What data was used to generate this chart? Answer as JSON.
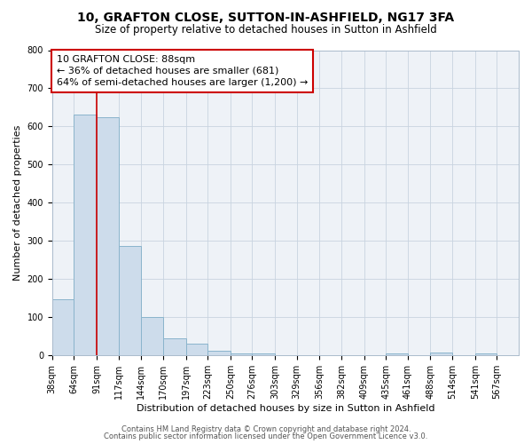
{
  "title": "10, GRAFTON CLOSE, SUTTON-IN-ASHFIELD, NG17 3FA",
  "subtitle": "Size of property relative to detached houses in Sutton in Ashfield",
  "xlabel": "Distribution of detached houses by size in Sutton in Ashfield",
  "ylabel": "Number of detached properties",
  "bar_values": [
    148,
    632,
    625,
    287,
    101,
    44,
    30,
    12,
    5,
    6,
    0,
    0,
    0,
    0,
    0,
    5,
    0,
    8,
    0,
    5
  ],
  "bin_labels": [
    "38sqm",
    "64sqm",
    "91sqm",
    "117sqm",
    "144sqm",
    "170sqm",
    "197sqm",
    "223sqm",
    "250sqm",
    "276sqm",
    "303sqm",
    "329sqm",
    "356sqm",
    "382sqm",
    "409sqm",
    "435sqm",
    "461sqm",
    "488sqm",
    "514sqm",
    "541sqm",
    "567sqm"
  ],
  "bin_edges": [
    38,
    64,
    91,
    117,
    144,
    170,
    197,
    223,
    250,
    276,
    303,
    329,
    356,
    382,
    409,
    435,
    461,
    488,
    514,
    541,
    567
  ],
  "bar_color": "#cddceb",
  "bar_edge_color": "#8ab4cc",
  "property_line_x": 91,
  "property_line_color": "#cc0000",
  "annotation_line1": "10 GRAFTON CLOSE: 88sqm",
  "annotation_line2": "← 36% of detached houses are smaller (681)",
  "annotation_line3": "64% of semi-detached houses are larger (1,200) →",
  "annotation_box_color": "#cc0000",
  "ylim": [
    0,
    800
  ],
  "yticks": [
    0,
    100,
    200,
    300,
    400,
    500,
    600,
    700,
    800
  ],
  "footer_line1": "Contains HM Land Registry data © Crown copyright and database right 2024.",
  "footer_line2": "Contains public sector information licensed under the Open Government Licence v3.0.",
  "bg_color": "#eef2f7",
  "grid_color": "#c8d4e0",
  "title_fontsize": 10,
  "subtitle_fontsize": 8.5,
  "tick_fontsize": 7,
  "label_fontsize": 8,
  "annotation_fontsize": 8,
  "footer_fontsize": 6
}
